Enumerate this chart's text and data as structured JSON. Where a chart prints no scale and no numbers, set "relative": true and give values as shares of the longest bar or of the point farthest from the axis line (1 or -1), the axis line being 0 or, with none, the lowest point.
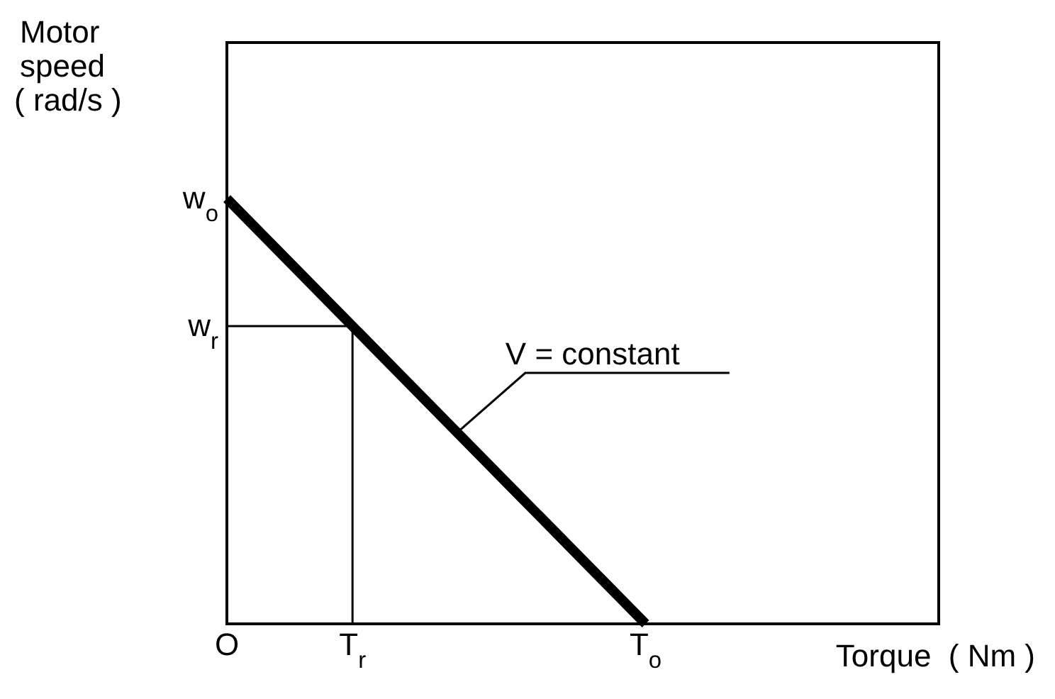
{
  "chart_data": {
    "type": "line",
    "relative": true,
    "xlabel": "Torque  ( Nm )",
    "ylabel": "Motor speed ( rad/s )",
    "categories": [
      "O",
      null,
      null,
      "T$_{r}$",
      null,
      null,
      null,
      null,
      null,
      null,
      "T$_{o}$",
      null,
      null,
      null,
      null,
      null,
      null,
      null
    ],
    "series": [
      {
        "color": "#000000",
        "values": [
          1,
          0.9,
          0.8,
          0.7,
          0.6,
          0.5,
          0.4,
          0.3,
          0.2,
          0.1,
          0,
          null,
          null,
          null,
          null,
          null,
          null,
          null
        ]
      }
    ],
    "ref_lines": [
      {
        "axis": "y",
        "value": 0.7,
        "color": "#000000"
      },
      {
        "axis": "x",
        "value": "T$_{r}$",
        "color": "#000000"
      }
    ],
    "annotations": [
      "V = constant",
      {
        "text": "w$_{o}$",
        "x": "O",
        "y": 1
      },
      {
        "text": "w$_{r}$",
        "x": "O",
        "y": 0.7
      }
    ],
    "marker": "none",
    "line_style": "solid"
  }
}
